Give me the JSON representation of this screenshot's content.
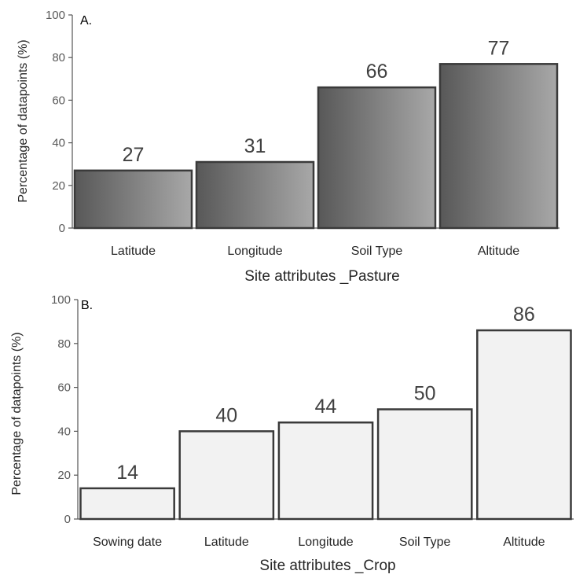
{
  "colors": {
    "axis": "#555555",
    "bar_stroke": "#3a3a3a",
    "panelA_gradient_start": "#585858",
    "panelA_gradient_end": "#a8a8a8",
    "panelB_fill": "#f2f2f2"
  },
  "chart_data": [
    {
      "type": "bar",
      "panel_label": "A.",
      "categories": [
        "Latitude",
        "Longitude",
        "Soil Type",
        "Altitude"
      ],
      "values": [
        27,
        31,
        66,
        77
      ],
      "data_labels": [
        "27",
        "31",
        "66",
        "77"
      ],
      "xlabel": "Site attributes _Pasture",
      "ylabel": "Percentage of datapoints (%)",
      "ylim": [
        0,
        100
      ],
      "yticks": [
        0,
        20,
        40,
        60,
        80,
        100
      ],
      "ytick_labels": [
        "0",
        "20",
        "40",
        "60",
        "80",
        "100"
      ],
      "grid": false,
      "fill": "gradient"
    },
    {
      "type": "bar",
      "panel_label": "B.",
      "categories": [
        "Sowing date",
        "Latitude",
        "Longitude",
        "Soil Type",
        "Altitude"
      ],
      "values": [
        14,
        40,
        44,
        50,
        86
      ],
      "data_labels": [
        "14",
        "40",
        "44",
        "50",
        "86"
      ],
      "xlabel": "Site attributes _Crop",
      "ylabel": "Percentage of datapoints (%)",
      "ylim": [
        0,
        100
      ],
      "yticks": [
        0,
        20,
        40,
        60,
        80,
        100
      ],
      "ytick_labels": [
        "0",
        "20",
        "40",
        "60",
        "80",
        "100"
      ],
      "grid": false,
      "fill": "light"
    }
  ]
}
